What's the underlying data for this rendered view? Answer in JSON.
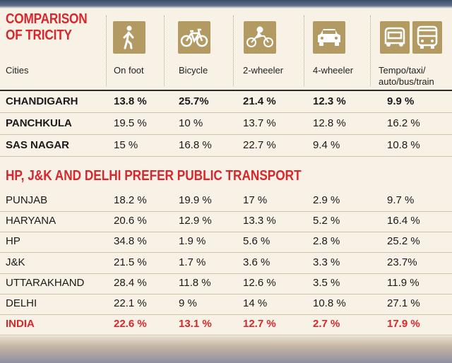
{
  "title": "COMPARISON OF TRICITY",
  "columns": {
    "cities": "Cities",
    "on_foot": "On foot",
    "bicycle": "Bicycle",
    "two_wheeler": "2-wheeler",
    "four_wheeler": "4-wheeler",
    "public": "Tempo/taxi/ auto/bus/train"
  },
  "icons": [
    "walking-person-icon",
    "bicycle-icon",
    "motorcycle-icon",
    "car-icon",
    "auto-rickshaw-icon",
    "bus-icon"
  ],
  "colors": {
    "accent_red": "#d8262d",
    "icon_bg": "#b39a63",
    "panel_bg": "#f7f1e6"
  },
  "tricity_rows": [
    {
      "city": "CHANDIGARH",
      "on_foot": "13.8 %",
      "bicycle": "25.7%",
      "two_wheeler": "21.4 %",
      "four_wheeler": "12.3 %",
      "public": "9.9 %"
    },
    {
      "city": "PANCHKULA",
      "on_foot": "19.5 %",
      "bicycle": "10 %",
      "two_wheeler": "13.7 %",
      "four_wheeler": "12.8 %",
      "public": "16.2 %"
    },
    {
      "city": "SAS NAGAR",
      "on_foot": "15 %",
      "bicycle": "16.8 %",
      "two_wheeler": "22.7 %",
      "four_wheeler": "9.4 %",
      "public": "10.8 %"
    }
  ],
  "section2_title": "HP, J&K AND DELHI PREFER PUBLIC TRANSPORT",
  "state_rows": [
    {
      "city": "PUNJAB",
      "on_foot": "18.2 %",
      "bicycle": "19.9 %",
      "two_wheeler": "17 %",
      "four_wheeler": "2.9 %",
      "public": "9.7 %"
    },
    {
      "city": "HARYANA",
      "on_foot": "20.6 %",
      "bicycle": "12.9 %",
      "two_wheeler": "13.3 %",
      "four_wheeler": "5.2 %",
      "public": "16.4 %"
    },
    {
      "city": "HP",
      "on_foot": "34.8 %",
      "bicycle": "1.9 %",
      "two_wheeler": "5.6 %",
      "four_wheeler": "2.8 %",
      "public": "25.2 %"
    },
    {
      "city": "J&K",
      "on_foot": "21.5 %",
      "bicycle": "1.7 %",
      "two_wheeler": "3.6 %",
      "four_wheeler": "3.3 %",
      "public": "23.7%"
    },
    {
      "city": "UTTARAKHAND",
      "on_foot": "28.4 %",
      "bicycle": "11.8 %",
      "two_wheeler": "12.6 %",
      "four_wheeler": "3.5 %",
      "public": "11.9 %"
    },
    {
      "city": "DELHI",
      "on_foot": "22.1 %",
      "bicycle": "9 %",
      "two_wheeler": "14 %",
      "four_wheeler": "10.8 %",
      "public": "27.1 %"
    }
  ],
  "india_row": {
    "city": "INDIA",
    "on_foot": "22.6 %",
    "bicycle": "13.1 %",
    "two_wheeler": "12.7 %",
    "four_wheeler": "2.7 %",
    "public": "17.9 %"
  }
}
